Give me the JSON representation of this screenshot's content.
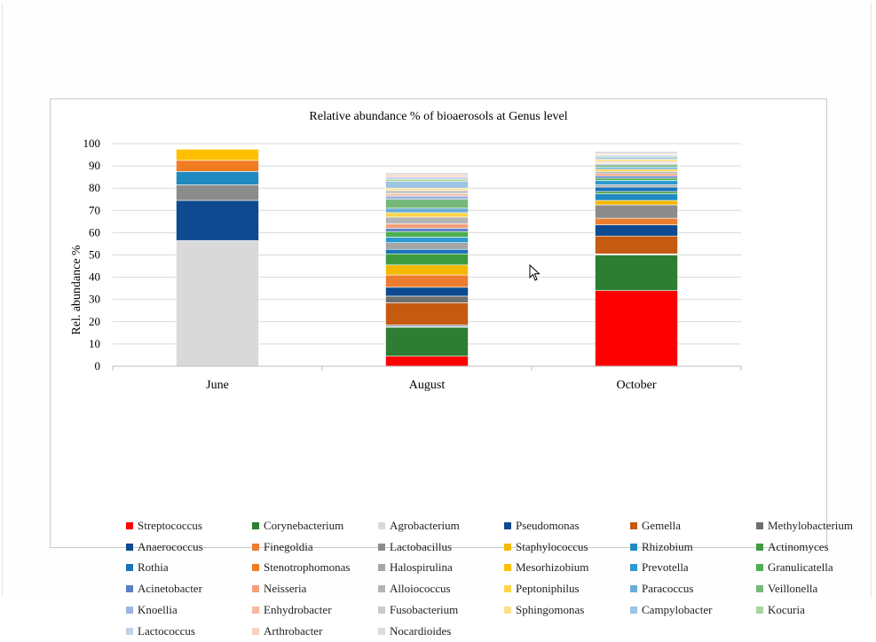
{
  "chart_data": {
    "type": "bar",
    "stacked": true,
    "title": "Relative  abundance % of bioaerosols at Genus level",
    "xlabel": "",
    "ylabel": "Rel. abundance %",
    "ylim": [
      0,
      100
    ],
    "yticks": [
      0,
      10,
      20,
      30,
      40,
      50,
      60,
      70,
      80,
      90,
      100
    ],
    "grid": true,
    "legend_position": "bottom",
    "categories": [
      "June",
      "August",
      "October"
    ],
    "series": [
      {
        "name": "Streptococcus",
        "color": "#ff0000",
        "values": [
          0,
          4.5,
          34
        ]
      },
      {
        "name": "Corynebacterium",
        "color": "#2e7d32",
        "values": [
          0,
          13,
          16
        ]
      },
      {
        "name": "Agrobacterium",
        "color": "#d9d9d9",
        "values": [
          56.5,
          0.5,
          0.5
        ]
      },
      {
        "name": "Pseudomonas",
        "color": "#0d4a8f",
        "values": [
          0,
          0.5,
          0
        ]
      },
      {
        "name": "Gemella",
        "color": "#c55a11",
        "values": [
          0,
          10,
          8
        ]
      },
      {
        "name": "Methylobacterium",
        "color": "#6e6e6e",
        "values": [
          0,
          3,
          0
        ]
      },
      {
        "name": "Anaerococcus",
        "color": "#0d4a8f",
        "values": [
          18,
          4,
          5
        ]
      },
      {
        "name": "Finegoldia",
        "color": "#ed7d31",
        "values": [
          0,
          5.5,
          3
        ]
      },
      {
        "name": "Lactobacillus",
        "color": "#8c8c8c",
        "values": [
          7,
          0,
          6
        ]
      },
      {
        "name": "Staphylococcus",
        "color": "#f5b800",
        "values": [
          0,
          4.5,
          2
        ]
      },
      {
        "name": "Rhizobium",
        "color": "#1f8ac0",
        "values": [
          6,
          0,
          3
        ]
      },
      {
        "name": "Actinomyces",
        "color": "#3f9b3f",
        "values": [
          0,
          5,
          1
        ]
      },
      {
        "name": "Rothia",
        "color": "#1a73b8",
        "values": [
          0,
          2,
          2
        ]
      },
      {
        "name": "Stenotrophomonas",
        "color": "#f07c22",
        "values": [
          5,
          0,
          0
        ]
      },
      {
        "name": "Halospirulina",
        "color": "#a6a6a6",
        "values": [
          0,
          3,
          1
        ]
      },
      {
        "name": "Mesorhizobium",
        "color": "#ffc000",
        "values": [
          5,
          0,
          0
        ]
      },
      {
        "name": "Prevotella",
        "color": "#2e9ad0",
        "values": [
          0,
          2.5,
          2
        ]
      },
      {
        "name": "Granulicatella",
        "color": "#4caf50",
        "values": [
          0,
          2.5,
          1
        ]
      },
      {
        "name": "Acinetobacter",
        "color": "#5b7ec8",
        "values": [
          0,
          1.5,
          1
        ]
      },
      {
        "name": "Neisseria",
        "color": "#f4a07a",
        "values": [
          0,
          2,
          1
        ]
      },
      {
        "name": "Alloiococcus",
        "color": "#b5b5b5",
        "values": [
          0,
          3,
          1
        ]
      },
      {
        "name": "Peptoniphilus",
        "color": "#ffd34d",
        "values": [
          0,
          2,
          1
        ]
      },
      {
        "name": "Paracoccus",
        "color": "#6aaed6",
        "values": [
          0,
          2,
          1
        ]
      },
      {
        "name": "Veillonella",
        "color": "#76b879",
        "values": [
          0,
          4,
          1
        ]
      },
      {
        "name": "Knoellia",
        "color": "#9fb3e0",
        "values": [
          0,
          1.5,
          0.5
        ]
      },
      {
        "name": "Enhydrobacter",
        "color": "#f7b9a0",
        "values": [
          0,
          1,
          0.5
        ]
      },
      {
        "name": "Fusobacterium",
        "color": "#c9c9c9",
        "values": [
          0,
          1.5,
          0.5
        ]
      },
      {
        "name": "Sphingomonas",
        "color": "#ffe08a",
        "values": [
          0,
          1,
          1
        ]
      },
      {
        "name": "Campylobacter",
        "color": "#9cc4e4",
        "values": [
          0,
          3,
          1
        ]
      },
      {
        "name": "Kocuria",
        "color": "#a8d5a0",
        "values": [
          0,
          1,
          0.5
        ]
      },
      {
        "name": "Lactococcus",
        "color": "#c5cfea",
        "values": [
          0,
          1,
          0.5
        ]
      },
      {
        "name": "Arthrobacter",
        "color": "#f9cfc0",
        "values": [
          0,
          1,
          0.5
        ]
      },
      {
        "name": "Nocardioides",
        "color": "#dcdcdc",
        "values": [
          0,
          1,
          1
        ]
      }
    ]
  }
}
